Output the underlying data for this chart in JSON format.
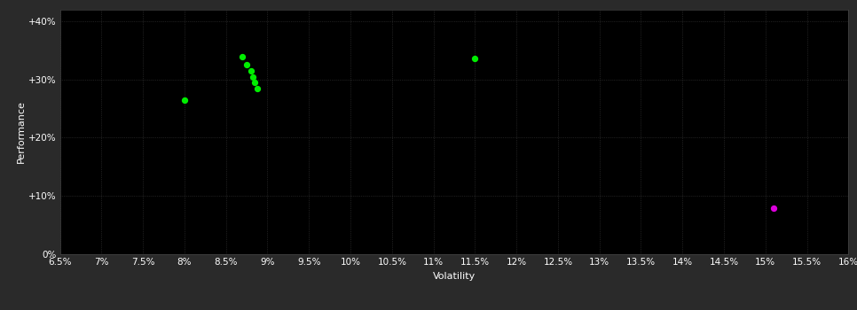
{
  "background_color": "#2a2a2a",
  "plot_bg_color": "#000000",
  "grid_color": "#3a3a3a",
  "text_color": "#ffffff",
  "xlabel": "Volatility",
  "ylabel": "Performance",
  "xlim": [
    0.065,
    0.16
  ],
  "ylim": [
    0.0,
    0.42
  ],
  "xticks": [
    0.065,
    0.07,
    0.075,
    0.08,
    0.085,
    0.09,
    0.095,
    0.1,
    0.105,
    0.11,
    0.115,
    0.12,
    0.125,
    0.13,
    0.135,
    0.14,
    0.145,
    0.15,
    0.155,
    0.16
  ],
  "xtick_labels": [
    "6.5%",
    "7%",
    "7.5%",
    "8%",
    "8.5%",
    "9%",
    "9.5%",
    "10%",
    "10.5%",
    "11%",
    "11.5%",
    "12%",
    "12.5%",
    "13%",
    "13.5%",
    "14%",
    "14.5%",
    "15%",
    "15.5%",
    "16%"
  ],
  "yticks": [
    0.0,
    0.1,
    0.2,
    0.3,
    0.4
  ],
  "ytick_labels": [
    "0%",
    "+10%",
    "+20%",
    "+30%",
    "+40%"
  ],
  "green_points": [
    [
      0.08,
      0.265
    ],
    [
      0.087,
      0.338
    ],
    [
      0.0875,
      0.325
    ],
    [
      0.088,
      0.314
    ],
    [
      0.0882,
      0.304
    ],
    [
      0.0885,
      0.294
    ],
    [
      0.0888,
      0.284
    ],
    [
      0.115,
      0.335
    ]
  ],
  "magenta_points": [
    [
      0.151,
      0.079
    ]
  ],
  "green_color": "#00ee00",
  "magenta_color": "#dd00dd",
  "marker_size": 18
}
